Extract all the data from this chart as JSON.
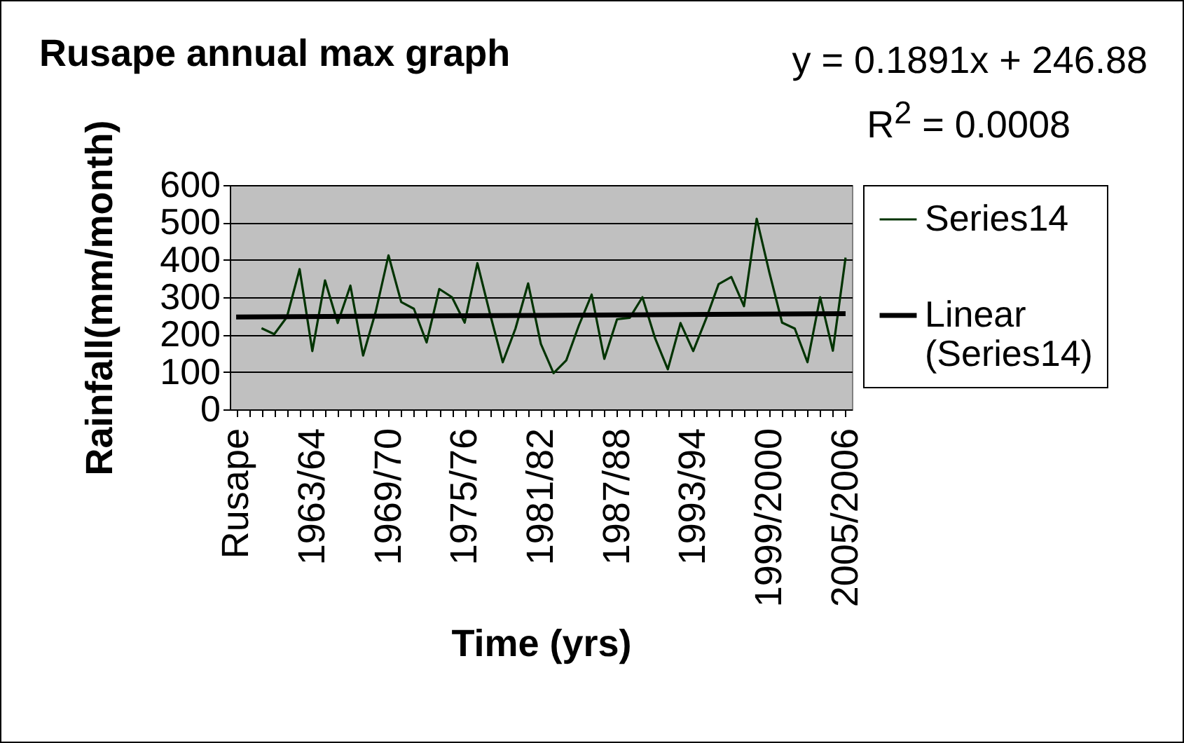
{
  "chart_data": {
    "type": "line",
    "title": "Rusape annual max graph",
    "xlabel": "Time (yrs)",
    "ylabel": "Rainfall(mm/month)",
    "annotations": [
      "y = 0.1891x + 246.88",
      "R$^{2}$ = 0.0008"
    ],
    "categories": [
      "Rusape",
      null,
      null,
      null,
      null,
      null,
      "1963/64",
      null,
      null,
      null,
      null,
      null,
      "1969/70",
      null,
      null,
      null,
      null,
      null,
      "1975/76",
      null,
      null,
      null,
      null,
      null,
      "1981/82",
      null,
      null,
      null,
      null,
      null,
      "1987/88",
      null,
      null,
      null,
      null,
      null,
      "1993/94",
      null,
      null,
      null,
      null,
      null,
      "1999/2000",
      null,
      null,
      null,
      null,
      null,
      "2005/2006"
    ],
    "series": [
      {
        "name": "Series14",
        "color": "#003300",
        "values": [
          null,
          null,
          217,
          201,
          247,
          375,
          156,
          345,
          231,
          331,
          144,
          262,
          412,
          287,
          269,
          179,
          322,
          300,
          232,
          391,
          255,
          126,
          216,
          337,
          175,
          97,
          131,
          225,
          307,
          135,
          241,
          245,
          300,
          190,
          107,
          231,
          156,
          241,
          335,
          354,
          276,
          510,
          366,
          232,
          216,
          126,
          300,
          157,
          406
        ]
      },
      {
        "name": "Linear (Series14)",
        "color": "#000000",
        "values": [
          247,
          null,
          null,
          null,
          null,
          null,
          null,
          null,
          null,
          null,
          null,
          null,
          null,
          null,
          null,
          null,
          null,
          null,
          null,
          null,
          null,
          null,
          null,
          null,
          null,
          null,
          null,
          null,
          null,
          null,
          null,
          null,
          null,
          null,
          null,
          null,
          null,
          null,
          null,
          null,
          null,
          null,
          null,
          null,
          null,
          null,
          null,
          null,
          256
        ]
      }
    ],
    "ylim": [
      0,
      600
    ],
    "yticks": [
      0,
      100,
      200,
      300,
      400,
      500,
      600
    ],
    "grid": "y",
    "legend": "right",
    "marker": "none"
  }
}
